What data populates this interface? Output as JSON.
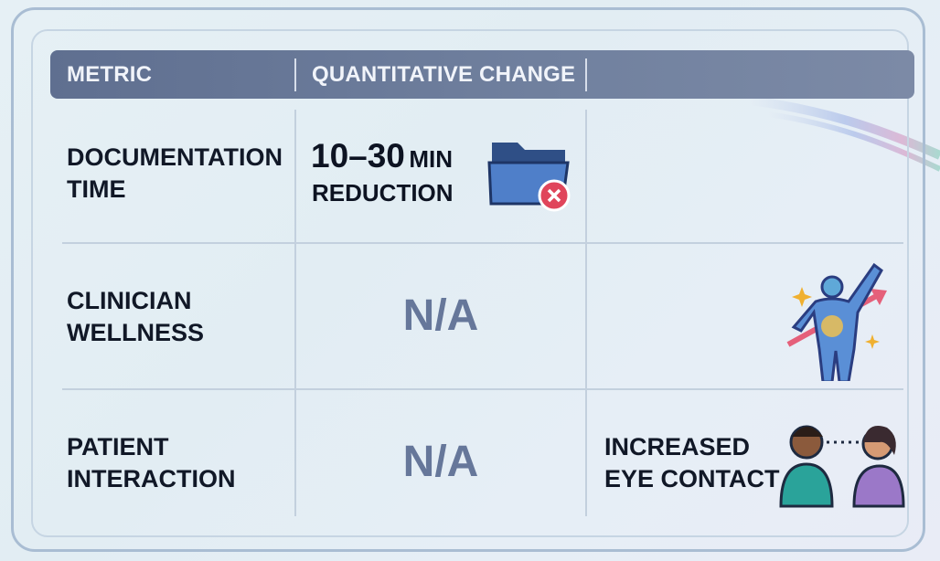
{
  "header": {
    "columns": [
      "METRIC",
      "QUANTITATIVE CHANGE"
    ]
  },
  "rows": [
    {
      "metric": [
        "DOCUMENTATION",
        "TIME"
      ],
      "change": {
        "figure": "10–30",
        "unit": "MIN",
        "note": "REDUCTION"
      }
    },
    {
      "metric": [
        "CLINICIAN",
        "WELLNESS"
      ],
      "change": "N/A"
    },
    {
      "metric": [
        "PATIENT",
        "INTERACTION"
      ],
      "change": "N/A",
      "qualitative": [
        "INCREASED",
        "EYE CONTACT"
      ]
    }
  ]
}
